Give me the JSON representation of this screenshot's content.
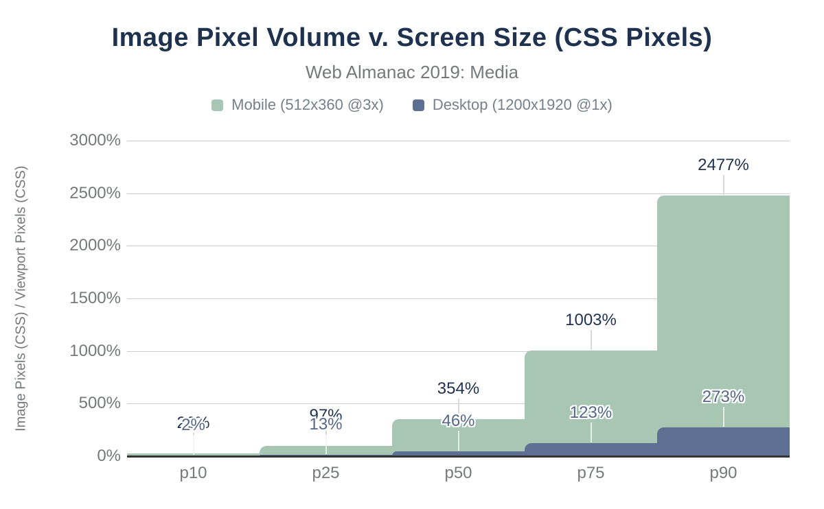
{
  "title": "Image Pixel Volume v. Screen Size (CSS Pixels)",
  "subtitle": "Web Almanac 2019: Media",
  "colors": {
    "title_navy": "#1e3250",
    "axis_gray": "#75797c",
    "legend_gray": "#75808a",
    "gridline": "#cccccc",
    "baseline": "#333333",
    "mobile_green": "#a7c6b4",
    "desktop_slate": "#5d6f92",
    "mobile_label": "#1e3250",
    "desktop_label": "#566889"
  },
  "legend": {
    "items": [
      {
        "id": "mobile",
        "label": "Mobile (512x360 @3x)",
        "color": "#a7c6b4"
      },
      {
        "id": "desktop",
        "label": "Desktop (1200x1920 @1x)",
        "color": "#5d6f92"
      }
    ]
  },
  "chart_data": {
    "type": "area",
    "variant": "stepped-area",
    "title": "Image Pixel Volume v. Screen Size (CSS Pixels)",
    "subtitle": "Web Almanac 2019: Media",
    "categories": [
      "p10",
      "p25",
      "p50",
      "p75",
      "p90"
    ],
    "series": [
      {
        "id": "mobile",
        "name": "Mobile (512x360 @3x)",
        "color": "#a7c6b4",
        "label_color": "#1e3250",
        "halo": false,
        "values": [
          26,
          97,
          354,
          1003,
          2477
        ],
        "labels": [
          "26%",
          "97%",
          "354%",
          "1003%",
          "2477%"
        ]
      },
      {
        "id": "desktop",
        "name": "Desktop (1200x1920 @1x)",
        "color": "#5d6f92",
        "label_color": "#566889",
        "halo": true,
        "values": [
          2,
          13,
          46,
          123,
          273
        ],
        "labels": [
          "2%",
          "13%",
          "46%",
          "123%",
          "273%"
        ]
      }
    ],
    "xlabel": "",
    "ylabel": "Image Pixels (CSS) / Viewport Pixels (CSS)",
    "ylim": [
      0,
      3000
    ],
    "yticks": [
      {
        "value": 0,
        "label": "0%"
      },
      {
        "value": 500,
        "label": "500%"
      },
      {
        "value": 1000,
        "label": "1000%"
      },
      {
        "value": 1500,
        "label": "1500%"
      },
      {
        "value": 2000,
        "label": "2000%"
      },
      {
        "value": 2500,
        "label": "2500%"
      },
      {
        "value": 3000,
        "label": "3000%"
      }
    ],
    "grid": true,
    "legend_position": "top"
  }
}
